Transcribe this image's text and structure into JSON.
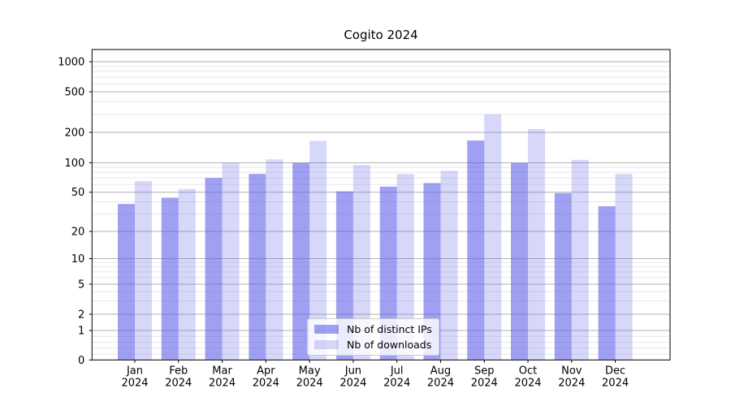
{
  "figure": {
    "background": "#ffffff"
  },
  "chart_data": {
    "type": "bar",
    "title": "Cogito 2024",
    "categories": [
      "Jan",
      "Feb",
      "Mar",
      "Apr",
      "May",
      "Jun",
      "Jul",
      "Aug",
      "Sep",
      "Oct",
      "Nov",
      "Dec"
    ],
    "category_year": "2024",
    "series": [
      {
        "name": "Nb of distinct IPs",
        "color": "rgba(97,97,234,0.60)",
        "values": [
          38,
          44,
          70,
          77,
          100,
          51,
          57,
          62,
          166,
          100,
          49,
          36
        ]
      },
      {
        "name": "Nb of downloads",
        "color": "rgba(97,97,234,0.25)",
        "values": [
          65,
          54,
          100,
          108,
          165,
          95,
          77,
          83,
          300,
          215,
          107,
          77
        ]
      }
    ],
    "xlabel": "",
    "ylabel": "",
    "yscale": "asinh (log-like, linear near 0)",
    "ylim": [
      0,
      1200
    ],
    "yticks": [
      0,
      1,
      2,
      5,
      10,
      20,
      50,
      100,
      200,
      500,
      1000
    ],
    "yticks_minor": [
      0.2,
      0.4,
      0.6,
      0.8,
      3,
      4,
      6,
      7,
      8,
      9,
      30,
      40,
      60,
      70,
      80,
      90,
      300,
      400,
      600,
      700,
      800,
      900
    ],
    "grid": "both",
    "legend_position": "lower center"
  },
  "legend": {
    "entries": [
      "Nb of distinct IPs",
      "Nb of downloads"
    ]
  },
  "colors": {
    "axis": "#000000",
    "text": "#000000",
    "grid_major": "#b2b2b2",
    "grid_minor": "#e7e7e7",
    "legend_border": "#cccccc",
    "legend_background": "rgba(255,255,255,0.8)"
  }
}
